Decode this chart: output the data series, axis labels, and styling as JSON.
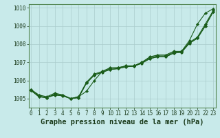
{
  "title": "Graphe pression niveau de la mer (hPa)",
  "bg_color": "#c8eaea",
  "grid_color": "#aacccc",
  "line_color": "#1a5c1a",
  "x_labels": [
    "0",
    "1",
    "2",
    "3",
    "4",
    "5",
    "6",
    "7",
    "8",
    "9",
    "10",
    "11",
    "12",
    "13",
    "14",
    "15",
    "16",
    "17",
    "18",
    "19",
    "20",
    "21",
    "22",
    "23"
  ],
  "ylim": [
    1004.5,
    1010.2
  ],
  "xlim": [
    -0.3,
    23.3
  ],
  "series": [
    [
      1005.5,
      1005.2,
      1005.1,
      1005.3,
      1005.2,
      1005.0,
      1005.1,
      1005.4,
      1006.0,
      1006.5,
      1006.7,
      1006.7,
      1006.8,
      1006.8,
      1007.0,
      1007.3,
      1007.4,
      1007.4,
      1007.6,
      1007.6,
      1008.2,
      1009.1,
      1009.7,
      1009.95
    ],
    [
      1005.5,
      1005.15,
      1005.05,
      1005.25,
      1005.2,
      1005.0,
      1005.1,
      1005.9,
      1006.35,
      1006.5,
      1006.65,
      1006.7,
      1006.8,
      1006.8,
      1007.0,
      1007.25,
      1007.35,
      1007.35,
      1007.55,
      1007.6,
      1008.1,
      1008.38,
      1009.1,
      1009.85
    ],
    [
      1005.45,
      1005.1,
      1005.05,
      1005.2,
      1005.15,
      1005.0,
      1005.05,
      1005.85,
      1006.3,
      1006.45,
      1006.6,
      1006.65,
      1006.75,
      1006.78,
      1006.95,
      1007.2,
      1007.3,
      1007.3,
      1007.5,
      1007.55,
      1008.05,
      1008.32,
      1009.0,
      1009.78
    ],
    [
      1005.45,
      1005.1,
      1005.05,
      1005.2,
      1005.15,
      1005.0,
      1005.05,
      1005.85,
      1006.3,
      1006.45,
      1006.6,
      1006.65,
      1006.75,
      1006.78,
      1006.95,
      1007.2,
      1007.3,
      1007.3,
      1007.5,
      1007.55,
      1008.05,
      1008.32,
      1009.0,
      1009.78
    ]
  ],
  "yticks": [
    1005,
    1006,
    1007,
    1008,
    1009,
    1010
  ],
  "title_fontsize": 7.5,
  "tick_fontsize": 5.5,
  "marker_size": 2.2,
  "line_width": 0.8
}
